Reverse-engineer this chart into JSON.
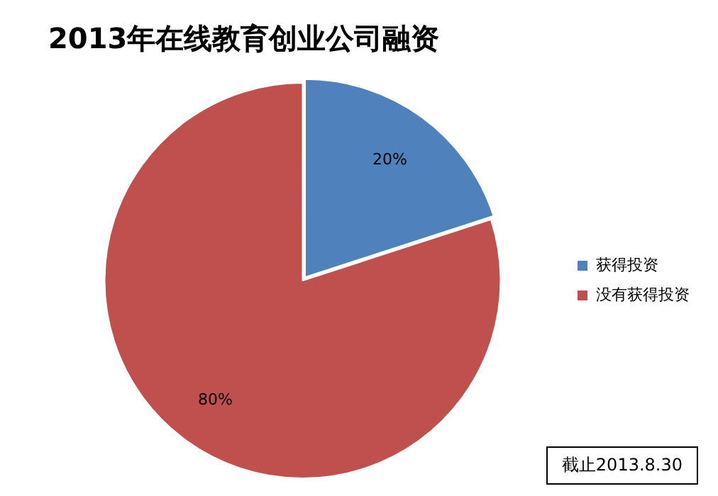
{
  "chart_data": {
    "type": "pie",
    "title": "2013年在线教育创业公司融资",
    "categories": [
      "获得投资",
      "没有获得投资"
    ],
    "values": [
      20,
      80
    ],
    "colors": [
      "#4f81bd",
      "#c0504d"
    ],
    "value_labels": [
      "20%",
      "80%"
    ],
    "legend": "right",
    "annotations": [
      "截止2013.8.30"
    ]
  }
}
